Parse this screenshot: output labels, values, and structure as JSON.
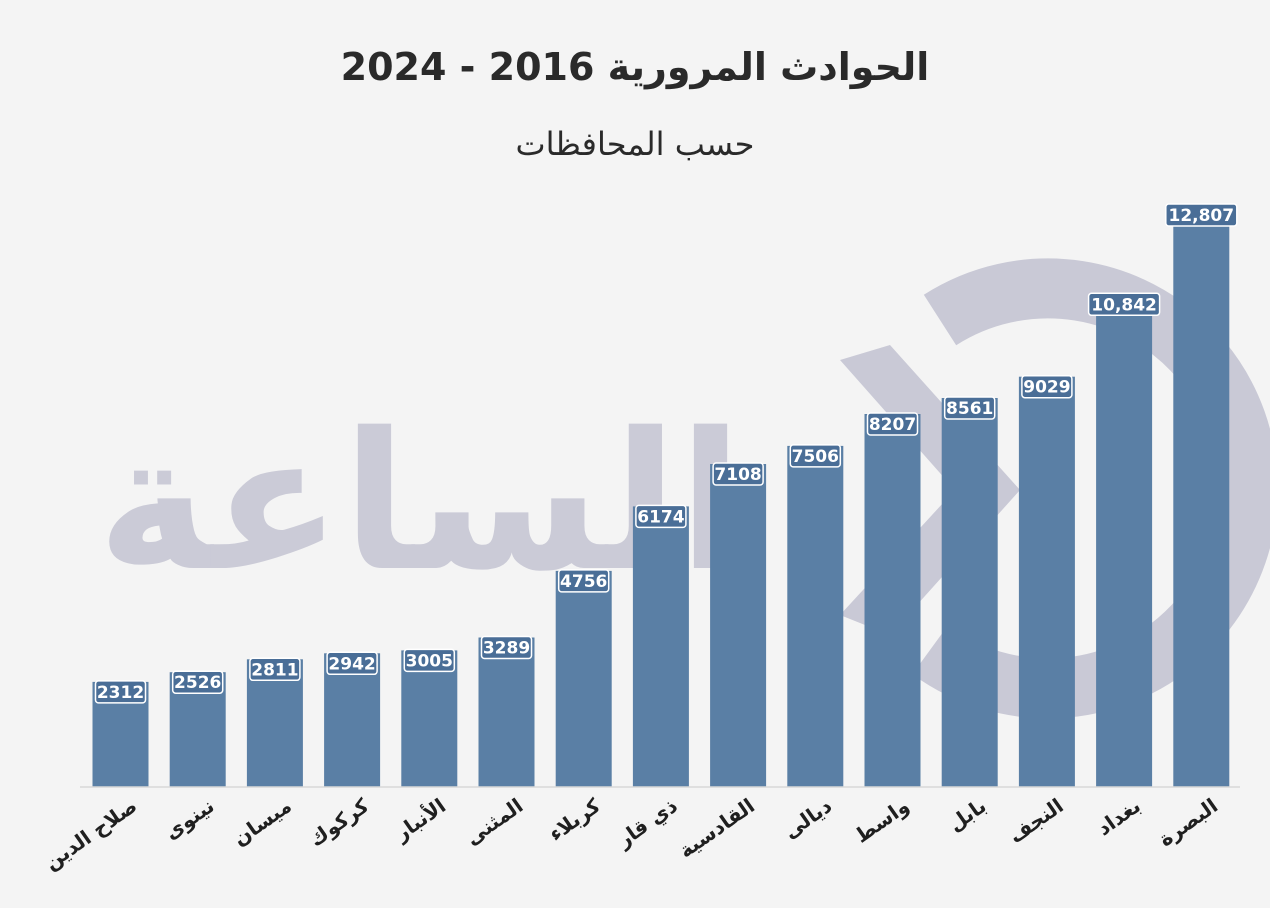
{
  "chart_data": {
    "type": "bar",
    "title": "الحوادث المرورية 2016 - 2024",
    "subtitle": "حسب المحافظات",
    "categories": [
      "صلاح الدين",
      "نينوى",
      "ميسان",
      "كركوك",
      "الأنبار",
      "المثنى",
      "كربلاء",
      "ذي قار",
      "القادسية",
      "ديالى",
      "واسط",
      "بابل",
      "النجف",
      "بغداد",
      "البصرة"
    ],
    "values": [
      2312,
      2526,
      2811,
      2942,
      3005,
      3289,
      4756,
      6174,
      7108,
      7506,
      8207,
      8561,
      9029,
      10842,
      12807
    ],
    "value_labels": [
      "2312",
      "2526",
      "2811",
      "2942",
      "3005",
      "3289",
      "4756",
      "6174",
      "7108",
      "7506",
      "8207",
      "8561",
      "9029",
      "10,842",
      "12,807"
    ],
    "xlabel": "",
    "ylabel": "",
    "ylim": [
      0,
      12807
    ],
    "grid": false,
    "legend": "none",
    "colors": {
      "bar": "#5a7fa5",
      "label_bg": "#4a6e97",
      "background": "#f4f4f4",
      "watermark": "#c9c9d6"
    }
  },
  "watermark": {
    "text": "الساعة"
  }
}
